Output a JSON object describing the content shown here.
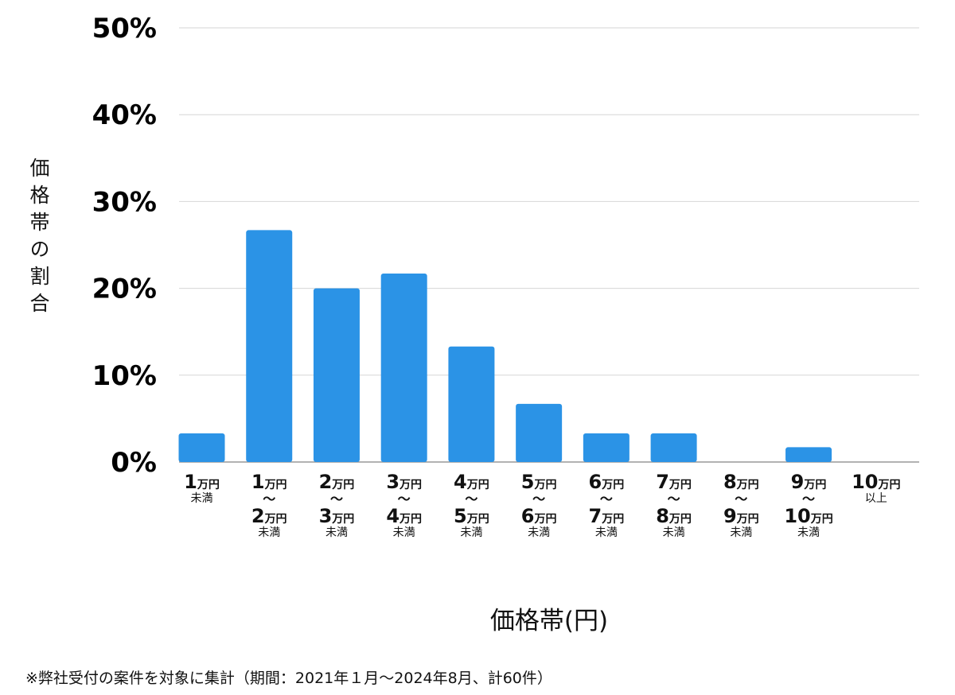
{
  "chart_data": {
    "type": "bar",
    "title": "",
    "xlabel": "価格帯(円)",
    "ylabel": "価格帯の割合",
    "ylim": [
      0,
      50
    ],
    "yticks": [
      "0%",
      "10%",
      "20%",
      "30%",
      "40%",
      "50%"
    ],
    "grid": true,
    "bar_color": "#2b93e6",
    "unit": "万円",
    "range_marker": "〜",
    "categories": [
      {
        "from": "1",
        "to": "",
        "suffix": "未満"
      },
      {
        "from": "1",
        "to": "2",
        "suffix": "未満"
      },
      {
        "from": "2",
        "to": "3",
        "suffix": "未満"
      },
      {
        "from": "3",
        "to": "4",
        "suffix": "未満"
      },
      {
        "from": "4",
        "to": "5",
        "suffix": "未満"
      },
      {
        "from": "5",
        "to": "6",
        "suffix": "未満"
      },
      {
        "from": "6",
        "to": "7",
        "suffix": "未満"
      },
      {
        "from": "7",
        "to": "8",
        "suffix": "未満"
      },
      {
        "from": "8",
        "to": "9",
        "suffix": "未満"
      },
      {
        "from": "9",
        "to": "10",
        "suffix": "未満"
      },
      {
        "from": "10",
        "to": "",
        "suffix": "以上"
      }
    ],
    "values": [
      3.3,
      26.7,
      20.0,
      21.7,
      13.3,
      6.7,
      3.3,
      3.3,
      0,
      1.7,
      0
    ]
  },
  "footnote": "※弊社受付の案件を対象に集計（期間：2021年１月〜2024年8月、計60件）"
}
